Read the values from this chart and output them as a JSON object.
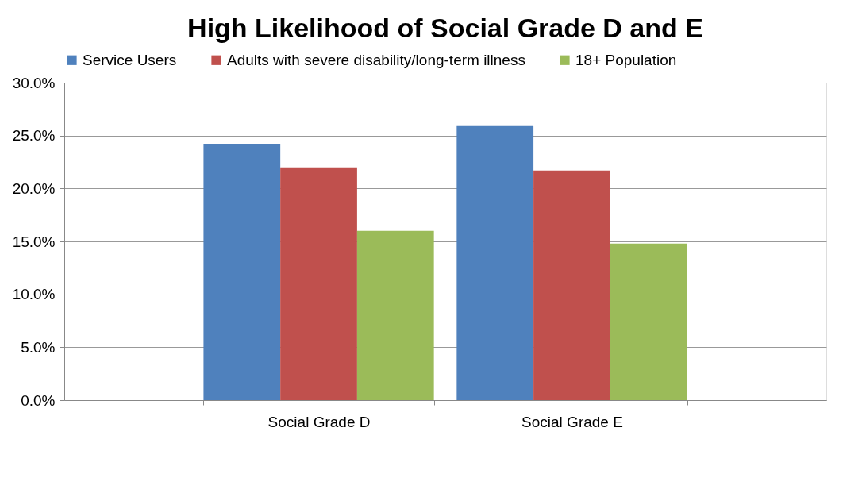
{
  "chart_data": {
    "type": "bar",
    "title": "High Likelihood of Social Grade D and E",
    "categories": [
      "Social Grade D",
      "Social Grade E"
    ],
    "series": [
      {
        "name": "Service Users",
        "color": "#4f81bd",
        "values": [
          24.2,
          25.9
        ]
      },
      {
        "name": "Adults with severe disability/long-term illness",
        "color": "#c0504d",
        "values": [
          22.0,
          21.7
        ]
      },
      {
        "name": "18+ Population",
        "color": "#9bbb59",
        "values": [
          16.0,
          14.8
        ]
      }
    ],
    "ylim": [
      0,
      30
    ],
    "yticks": [
      {
        "value": 0,
        "label": "0.0%"
      },
      {
        "value": 5,
        "label": "5.0%"
      },
      {
        "value": 10,
        "label": "10.0%"
      },
      {
        "value": 15,
        "label": "15.0%"
      },
      {
        "value": 20,
        "label": "20.0%"
      },
      {
        "value": 25,
        "label": "25.0%"
      },
      {
        "value": 30,
        "label": "30.0%"
      }
    ],
    "grid": "y",
    "legend": "top"
  }
}
